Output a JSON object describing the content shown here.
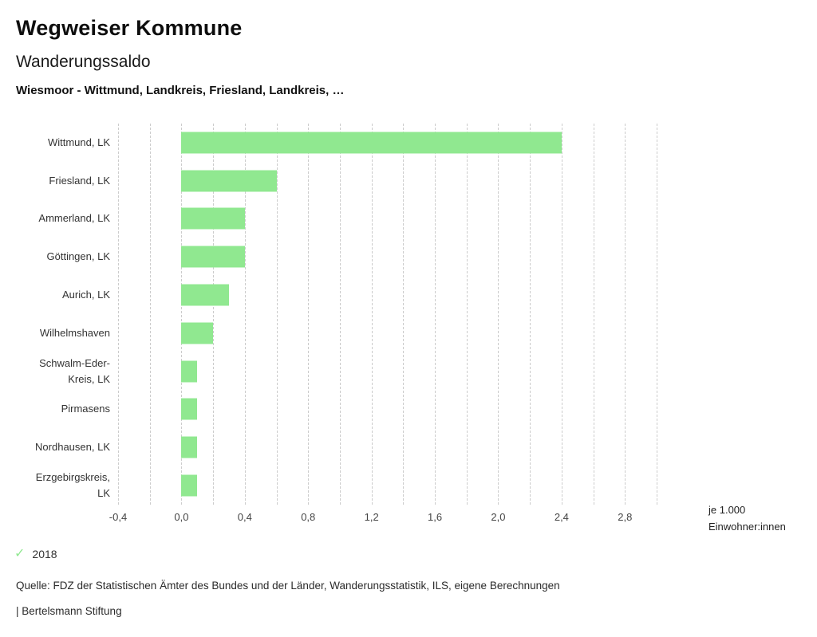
{
  "header": {
    "title": "Wegweiser Kommune",
    "subtitle": "Wanderungssaldo",
    "region_line": "Wiesmoor - Wittmund, Landkreis, Friesland, Landkreis, …"
  },
  "legend": {
    "year": "2018",
    "icon": "check-icon"
  },
  "footer": {
    "source": "Quelle: FDZ der Statistischen Ämter des Bundes und der Länder, Wanderungsstatistik, ILS, eigene Berechnungen",
    "brand": "| Bertelsmann Stiftung"
  },
  "chart_data": {
    "type": "bar",
    "orientation": "horizontal",
    "title": "Wanderungssaldo",
    "series_name": "2018",
    "categories": [
      "Wittmund, LK",
      "Friesland, LK",
      "Ammerland, LK",
      "Göttingen, LK",
      "Aurich, LK",
      "Wilhelmshaven",
      "Schwalm-Eder-Kreis, LK",
      "Pirmasens",
      "Nordhausen, LK",
      "Erzgebirgskreis, LK"
    ],
    "category_labels": [
      "Wittmund, LK",
      "Friesland, LK",
      "Ammerland, LK",
      "Göttingen, LK",
      "Aurich, LK",
      "Wilhelmshaven",
      "Schwalm-Eder-\nKreis, LK",
      "Pirmasens",
      "Nordhausen, LK",
      "Erzgebirgskreis,\nLK"
    ],
    "values": [
      2.4,
      0.6,
      0.4,
      0.4,
      0.3,
      0.2,
      0.1,
      0.1,
      0.1,
      0.1
    ],
    "xlim": [
      -0.4,
      3.0
    ],
    "xticks": [
      -0.4,
      0.0,
      0.4,
      0.8,
      1.2,
      1.6,
      2.0,
      2.4,
      2.8
    ],
    "xtick_labels": [
      "-0,4",
      "0,0",
      "0,4",
      "0,8",
      "1,2",
      "1,6",
      "2,0",
      "2,4",
      "2,8"
    ],
    "grid": "dashed-vertical",
    "grid_step": 0.2,
    "bar_color": "#90e890",
    "accent_color": "#90e890",
    "unit_lines": [
      "je 1.000",
      "Einwohner:innen"
    ],
    "legend_position": "bottom-left"
  }
}
